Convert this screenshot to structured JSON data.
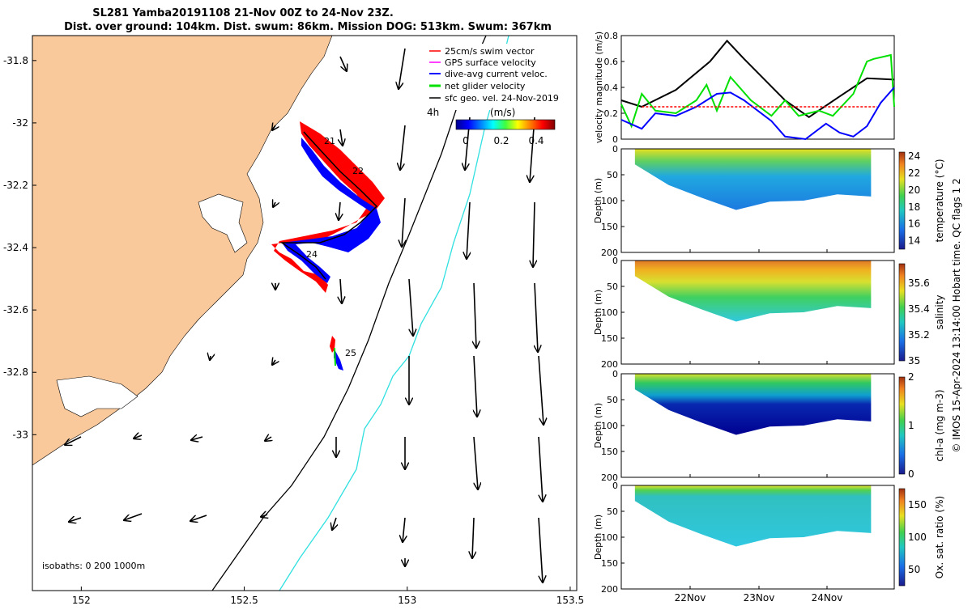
{
  "title": {
    "line1": "SL281 Yamba20191108 21-Nov 00Z to 24-Nov 23Z.",
    "line2": "Dist. over ground: 104km. Dist. swum: 86km. Mission DOG: 513km. Swum: 367km"
  },
  "map": {
    "x_ticks": [
      "152",
      "152.5",
      "153",
      "153.5"
    ],
    "y_ticks": [
      "-31.8",
      "-32",
      "-32.2",
      "-32.4",
      "-32.6",
      "-32.8",
      "-33"
    ],
    "xlim": [
      151.85,
      153.52
    ],
    "ylim": [
      -33.5,
      -31.72
    ],
    "legend": [
      {
        "label": "25cm/s swim vector",
        "color": "#ff0000"
      },
      {
        "label": "GPS surface velocity",
        "color": "#ff00ff"
      },
      {
        "label": "dive-avg current veloc.",
        "color": "#0000ff"
      },
      {
        "label": "net glider velocity",
        "color": "#00e000"
      },
      {
        "label": "sfc geo. vel. 24-Nov-2019",
        "color": "#000000"
      }
    ],
    "colorbar": {
      "title": "(m/s)",
      "ticks": [
        "0",
        "0.2",
        "0.4"
      ],
      "range": [
        0,
        0.5
      ]
    },
    "scale_label": "4h",
    "day_labels": [
      "21",
      "22",
      "24",
      "25"
    ],
    "isobaths_label": "isobaths: 0   200  1000m",
    "land_color": "#f9c89b",
    "isobath_200_color": "#000000",
    "isobath_1000_color": "#30e0e0"
  },
  "velocity_panel": {
    "ylabel": "velocity magnitude (m/s)",
    "y_ticks": [
      "0",
      "0.2",
      "0.4",
      "0.6",
      "0.8"
    ],
    "ylim": [
      0,
      0.8
    ]
  },
  "section_common": {
    "ylabel": "Depth (m)",
    "depth_ticks": [
      "0",
      "50",
      "100",
      "150",
      "200"
    ],
    "time_ticks": [
      "22Nov",
      "23Nov",
      "24Nov"
    ]
  },
  "sections": [
    {
      "label": "temperature (°C)",
      "ticks": [
        "14",
        "16",
        "18",
        "20",
        "22",
        "24"
      ],
      "range": [
        13,
        24.5
      ]
    },
    {
      "label": "salinity",
      "ticks": [
        "35",
        "35.2",
        "35.4",
        "35.6"
      ],
      "range": [
        35,
        35.75
      ]
    },
    {
      "label": "chl-a (mg m-3)",
      "ticks": [
        "0",
        "1",
        "2"
      ],
      "range": [
        0,
        2
      ]
    },
    {
      "label": "Ox. sat. ratio (%)",
      "ticks": [
        "50",
        "100",
        "150"
      ],
      "range": [
        25,
        175
      ]
    }
  ],
  "footer": "© IMOS 15-Apr-2024 13:14:00 Hobart time. QC flags 1  2",
  "chart_data": [
    {
      "type": "line",
      "title": "velocity magnitude",
      "x_domain": "time (days, 21-Nov 00Z to 24-Nov 23Z)",
      "ylim": [
        0,
        0.8
      ],
      "series": [
        {
          "color": "#000000",
          "x": [
            0,
            0.3,
            0.8,
            1.3,
            1.55,
            1.8,
            2.4,
            2.75,
            3.2,
            3.6,
            4.0
          ],
          "values": [
            0.3,
            0.25,
            0.38,
            0.6,
            0.76,
            0.62,
            0.3,
            0.17,
            0.33,
            0.47,
            0.46
          ]
        },
        {
          "color": "#00e000",
          "x": [
            0,
            0.15,
            0.3,
            0.5,
            0.8,
            1.1,
            1.25,
            1.4,
            1.6,
            1.9,
            2.2,
            2.4,
            2.6,
            2.9,
            3.1,
            3.4,
            3.6,
            3.7,
            3.95,
            4.0
          ],
          "values": [
            0.27,
            0.1,
            0.35,
            0.22,
            0.2,
            0.3,
            0.42,
            0.22,
            0.48,
            0.3,
            0.18,
            0.3,
            0.18,
            0.22,
            0.18,
            0.35,
            0.6,
            0.62,
            0.65,
            0.25
          ]
        },
        {
          "color": "#0000ff",
          "x": [
            0,
            0.3,
            0.5,
            0.8,
            1.1,
            1.4,
            1.6,
            1.8,
            2.2,
            2.4,
            2.7,
            3.0,
            3.2,
            3.4,
            3.6,
            3.8,
            4.0
          ],
          "values": [
            0.15,
            0.08,
            0.2,
            0.18,
            0.25,
            0.35,
            0.36,
            0.3,
            0.14,
            0.02,
            0.0,
            0.12,
            0.05,
            0.02,
            0.1,
            0.28,
            0.4
          ]
        },
        {
          "color": "#ff0000",
          "x": [
            0.3,
            3.75
          ],
          "values": [
            0.25,
            0.25
          ]
        }
      ]
    },
    {
      "type": "heatmap",
      "title": "temperature section",
      "ylim": [
        200,
        0
      ],
      "profile_max_depth": [
        30,
        70,
        95,
        118,
        102,
        100,
        88,
        92
      ],
      "surface_value": 22.5,
      "deep_value": 14.5
    },
    {
      "type": "heatmap",
      "title": "salinity section",
      "ylim": [
        200,
        0
      ],
      "profile_max_depth": [
        30,
        70,
        95,
        118,
        102,
        100,
        88,
        92
      ],
      "surface_value": 35.6,
      "deep_value": 35.25
    },
    {
      "type": "heatmap",
      "title": "chl-a section",
      "ylim": [
        200,
        0
      ],
      "profile_max_depth": [
        30,
        70,
        95,
        118,
        102,
        100,
        88,
        92
      ],
      "surface_value": 0.8,
      "deep_value": 0.1
    },
    {
      "type": "heatmap",
      "title": "oxygen saturation section",
      "ylim": [
        200,
        0
      ],
      "profile_max_depth": [
        30,
        70,
        95,
        118,
        102,
        100,
        88,
        92
      ],
      "surface_value": 120,
      "deep_value": 95
    }
  ]
}
